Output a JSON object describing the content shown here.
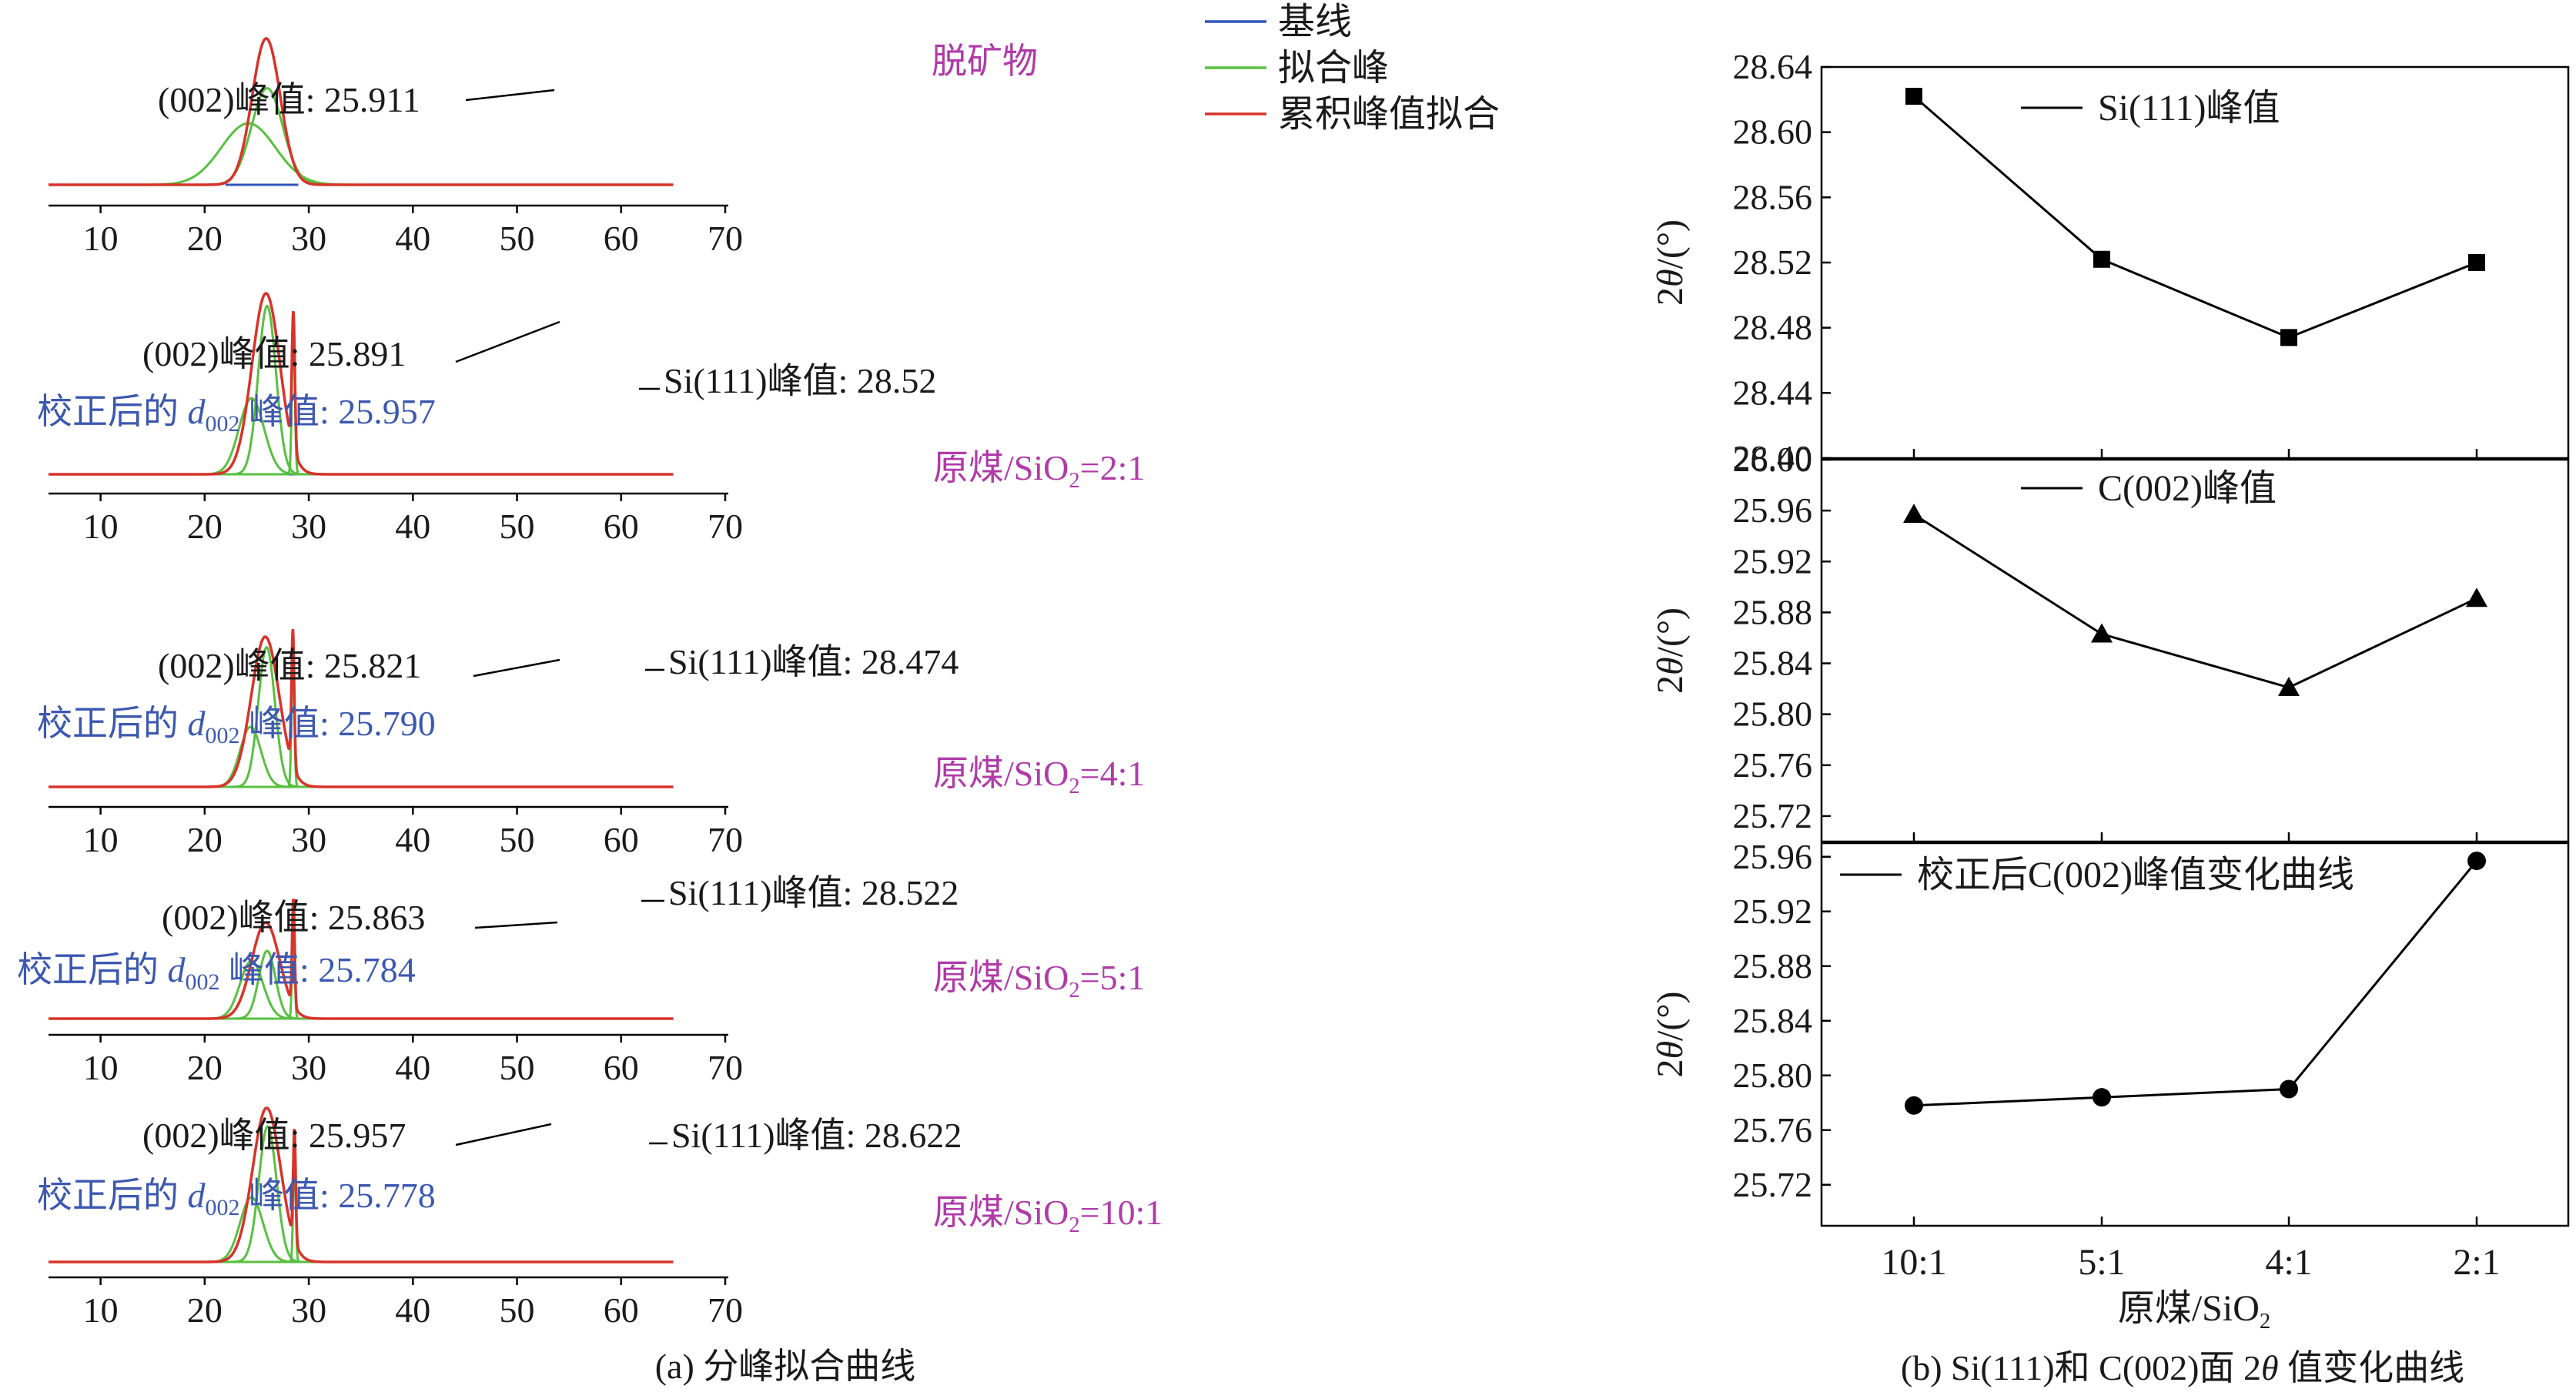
{
  "colors": {
    "baseline": "#2f55b8",
    "fit_peak": "#58c040",
    "cumulative_fit": "#d8332b",
    "annotation": "#1a1a1a",
    "calibrated_label": "#3c58b0",
    "sample_label": "#b03aa8",
    "axis": "#000000"
  },
  "chart_data": [
    {
      "type": "line",
      "panel": "a",
      "caption": "(a) 分峰拟合曲线",
      "legend": [
        "基线",
        "拟合峰",
        "累积峰值拟合"
      ],
      "legend_placement": "top-right",
      "x_ticks": [
        "10",
        "20",
        "30",
        "40",
        "50",
        "60",
        "70"
      ],
      "xlim": [
        5,
        70
      ],
      "line_range": [
        5,
        65
      ],
      "subplots": [
        {
          "sample": "脱矿物",
          "peak_label": "(002)峰值: 25.911",
          "si_label": "",
          "calibrated_label": [],
          "c002": {
            "center": 25.911,
            "height": 1.0
          },
          "broad": {
            "center": 24.2,
            "height": 0.42,
            "width": 2.6
          },
          "narrow": {
            "center": 26.0,
            "height": 0.66,
            "width": 1.5
          },
          "si": null
        },
        {
          "sample": "原煤/SiO2=2:1",
          "peak_label": "(002)峰值: 25.891",
          "si_label": "Si(111)峰值: 28.52",
          "calibrated_label": [
            "校正后的 ",
            "d",
            "002",
            " 峰值: 25.957"
          ],
          "c002": {
            "center": 25.891,
            "height": 1.0
          },
          "broad": {
            "center": 24.5,
            "height": 0.42,
            "width": 1.2
          },
          "narrow": {
            "center": 26.0,
            "height": 0.93,
            "width": 0.85
          },
          "si": {
            "center": 28.52,
            "height": 0.75,
            "fit_height": 0.83,
            "width": 0.14
          }
        },
        {
          "sample": "原煤/SiO2=4:1",
          "peak_label": "(002)峰值: 25.821",
          "si_label": "Si(111)峰值: 28.474",
          "calibrated_label": [
            "校正后的 ",
            "d",
            "002",
            " 峰值: 25.790"
          ],
          "c002": {
            "center": 25.821,
            "height": 1.0
          },
          "broad": {
            "center": 24.4,
            "height": 0.4,
            "width": 1.0
          },
          "narrow": {
            "center": 25.95,
            "height": 0.93,
            "width": 0.8
          },
          "si": {
            "center": 28.474,
            "height": 0.9,
            "fit_height": 0.9,
            "width": 0.13
          }
        },
        {
          "sample": "原煤/SiO2=5:1",
          "peak_label": "(002)峰值: 25.863",
          "si_label": "Si(111)峰值: 28.522",
          "calibrated_label": [
            "校正后的 ",
            "d",
            "002",
            " 峰值: 25.784"
          ],
          "c002": {
            "center": 25.863,
            "height": 0.78
          },
          "broad": {
            "center": 24.5,
            "height": 0.47,
            "width": 1.1
          },
          "narrow": {
            "center": 26.0,
            "height": 0.55,
            "width": 0.8
          },
          "si": {
            "center": 28.522,
            "height": 0.86,
            "fit_height": 0.86,
            "width": 0.12
          }
        },
        {
          "sample": "原煤/SiO2=10:1",
          "peak_label": "(002)峰值: 25.957",
          "si_label": "Si(111)峰值: 28.622",
          "calibrated_label": [
            "校正后的 ",
            "d",
            "002",
            " 峰值: 25.778"
          ],
          "c002": {
            "center": 25.957,
            "height": 1.0
          },
          "broad": {
            "center": 24.5,
            "height": 0.42,
            "width": 1.1
          },
          "narrow": {
            "center": 26.05,
            "height": 0.88,
            "width": 0.85
          },
          "si": {
            "center": 28.622,
            "height": 0.72,
            "fit_height": 0.72,
            "width": 0.12
          }
        }
      ]
    },
    {
      "type": "line",
      "panel": "b",
      "caption_parts": [
        "(b) Si(111)和 C(002)面 2",
        "θ",
        " 值变化曲线"
      ],
      "xlabel": "原煤/SiO2",
      "categories": [
        "10:1",
        "5:1",
        "4:1",
        "2:1"
      ],
      "ylabel": "2θ/(°)",
      "subplots": [
        {
          "series": [
            {
              "name": "Si(111)峰值",
              "values": [
                28.622,
                28.522,
                28.474,
                28.52
              ],
              "marker": "square"
            }
          ],
          "ylim": [
            28.4,
            28.64
          ],
          "yticks": [
            "28.40",
            "28.44",
            "28.48",
            "28.52",
            "28.56",
            "28.60",
            "28.64"
          ]
        },
        {
          "series": [
            {
              "name": "C(002)峰值",
              "values": [
                25.957,
                25.863,
                25.821,
                25.891
              ],
              "marker": "triangle"
            }
          ],
          "ylim": [
            25.7,
            26.0
          ],
          "yticks": [
            "25.72",
            "25.76",
            "25.80",
            "25.84",
            "25.88",
            "25.92",
            "25.96",
            "26.00"
          ]
        },
        {
          "series": [
            {
              "name": "校正后C(002)峰值变化曲线",
              "values": [
                25.778,
                25.784,
                25.79,
                25.957
              ],
              "marker": "circle"
            }
          ],
          "ylim": [
            25.69,
            25.97
          ],
          "yticks": [
            "25.72",
            "25.76",
            "25.80",
            "25.84",
            "25.88",
            "25.92",
            "25.96"
          ]
        }
      ]
    }
  ]
}
